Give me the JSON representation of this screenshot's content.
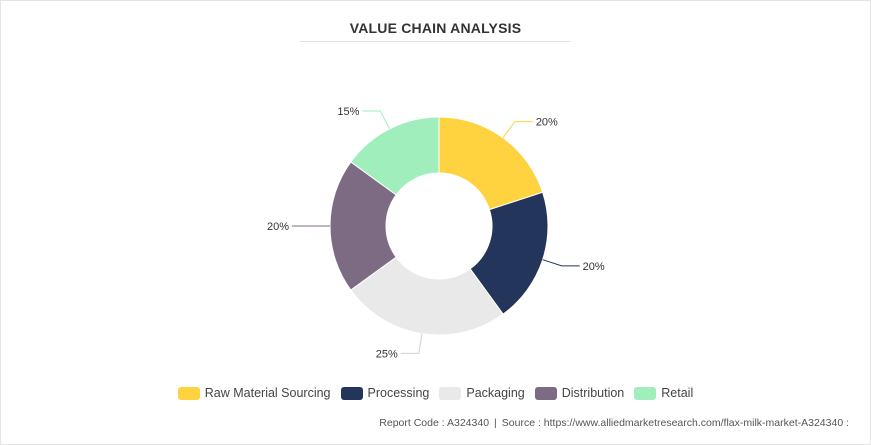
{
  "chart_data": {
    "type": "pie",
    "title": "VALUE CHAIN ANALYSIS",
    "categories": [
      "Raw Material Sourcing",
      "Processing",
      "Packaging",
      "Distribution",
      "Retail"
    ],
    "values": [
      20,
      20,
      25,
      20,
      15
    ],
    "value_labels": [
      "20%",
      "20%",
      "25%",
      "20%",
      "15%"
    ],
    "colors": [
      "#FFD23F",
      "#23355A",
      "#E9E9E9",
      "#7C6B82",
      "#A1EEBD"
    ],
    "donut": true,
    "legend_position": "bottom"
  },
  "footer": {
    "report_code": "Report Code : A324340",
    "separator": "|",
    "source": "Source : https://www.alliedmarketresearch.com/flax-milk-market-A324340 :"
  }
}
